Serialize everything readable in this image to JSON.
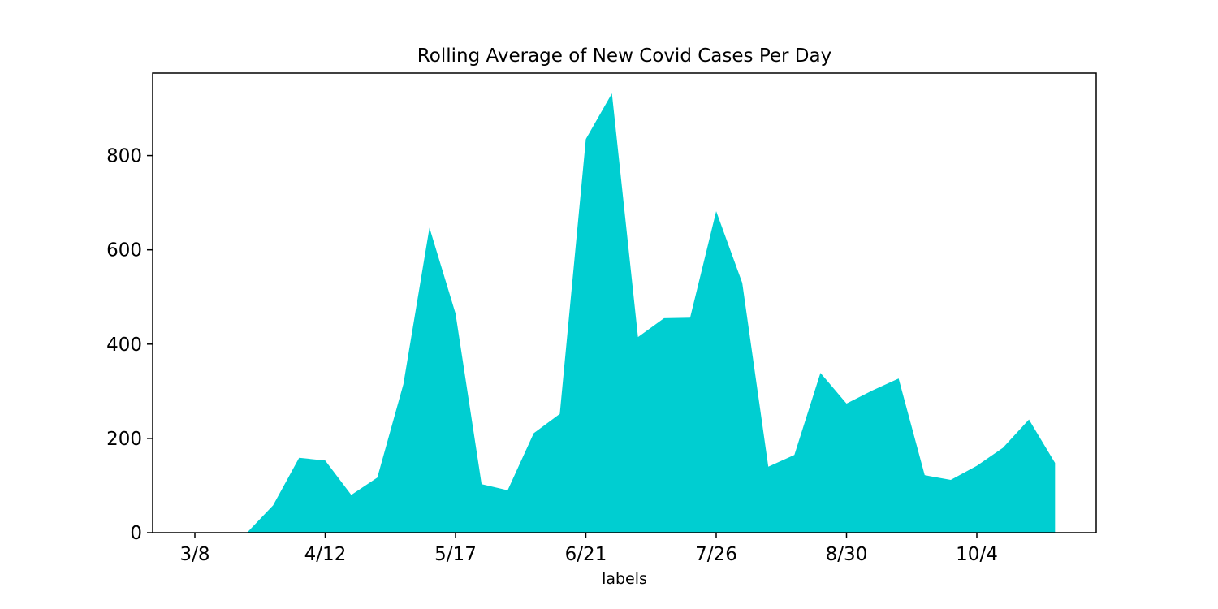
{
  "chart_data": {
    "type": "area",
    "title": "Rolling Average of New Covid Cases Per Day",
    "xlabel": "labels",
    "ylabel": "",
    "ylim": [
      0,
      975
    ],
    "yticks": [
      0,
      200,
      400,
      600,
      800
    ],
    "xtick_labels": [
      "3/8",
      "4/12",
      "5/17",
      "6/21",
      "7/26",
      "8/30",
      "10/4"
    ],
    "fill_color": "#00CED1",
    "grid": false,
    "legend": "none",
    "x": [
      "3/8",
      "3/15",
      "3/22",
      "3/29",
      "4/5",
      "4/12",
      "4/19",
      "4/26",
      "5/3",
      "5/10",
      "5/17",
      "5/24",
      "5/31",
      "6/7",
      "6/14",
      "6/21",
      "6/28",
      "7/5",
      "7/12",
      "7/19",
      "7/26",
      "8/2",
      "8/9",
      "8/16",
      "8/23",
      "8/30",
      "9/6",
      "9/13",
      "9/20",
      "9/27",
      "10/4",
      "10/11",
      "10/18",
      "10/25"
    ],
    "values": [
      0,
      0,
      0,
      58,
      159,
      153,
      80,
      117,
      315,
      647,
      465,
      103,
      90,
      211,
      252,
      835,
      932,
      415,
      455,
      456,
      682,
      530,
      140,
      165,
      339,
      274,
      302,
      327,
      122,
      112,
      142,
      180,
      240,
      148
    ]
  }
}
